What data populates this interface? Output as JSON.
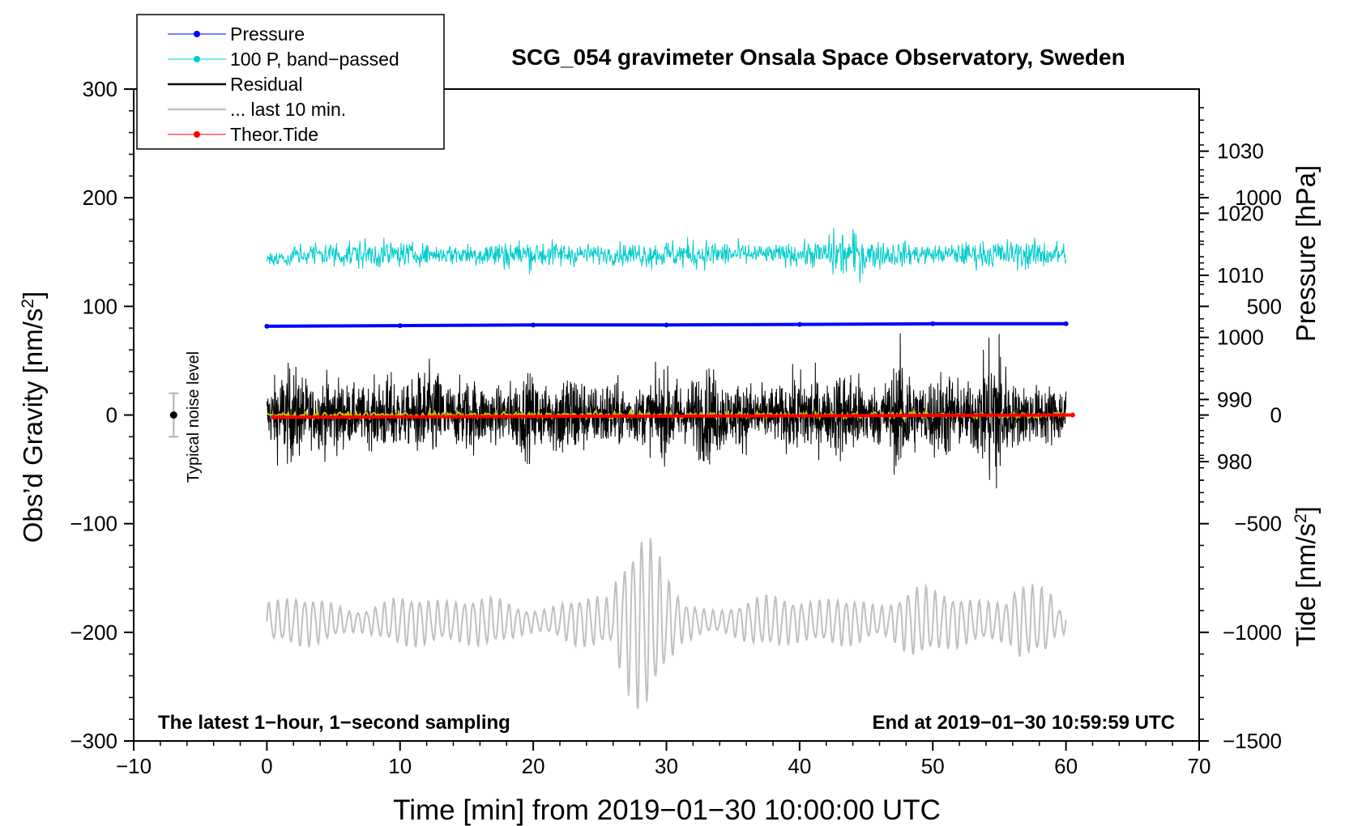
{
  "chart_data": {
    "type": "line",
    "title": "SCG_054 gravimeter Onsala Space Observatory, Sweden",
    "xlabel": "Time [min] from 2019−01−30 10:00:00 UTC",
    "ylabel_main": "Obs’d Gravity [nm/s",
    "ylabel_main_sup": "2",
    "ylabel_main_end": "]",
    "ylabel_pressure": "Pressure [hPa]",
    "ylabel_tide": "Tide [nm/s",
    "ylabel_tide_sup": "2",
    "ylabel_tide_end": "]",
    "xlim": [
      -10,
      70
    ],
    "ylim_main": [
      -300,
      300
    ],
    "ylim_pressure": [
      935,
      1040
    ],
    "ylim_tide": [
      -1500,
      1500
    ],
    "x_ticks": [
      {
        "v": -10,
        "label": "−10"
      },
      {
        "v": 0,
        "label": "0"
      },
      {
        "v": 10,
        "label": "10"
      },
      {
        "v": 20,
        "label": "20"
      },
      {
        "v": 30,
        "label": "30"
      },
      {
        "v": 40,
        "label": "40"
      },
      {
        "v": 50,
        "label": "50"
      },
      {
        "v": 60,
        "label": "60"
      },
      {
        "v": 70,
        "label": "70"
      }
    ],
    "y_ticks_main": [
      {
        "v": 300,
        "label": "300"
      },
      {
        "v": 200,
        "label": "200"
      },
      {
        "v": 100,
        "label": "100"
      },
      {
        "v": 0,
        "label": "0"
      },
      {
        "v": -100,
        "label": "−100"
      },
      {
        "v": -200,
        "label": "−200"
      },
      {
        "v": -300,
        "label": "−300"
      }
    ],
    "y_ticks_pressure": [
      {
        "v": 1030,
        "label": "1030"
      },
      {
        "v": 1020,
        "label": "1020"
      },
      {
        "v": 1010,
        "label": "1010"
      },
      {
        "v": 1000,
        "label": "1000"
      },
      {
        "v": 990,
        "label": "990"
      },
      {
        "v": 980,
        "label": "980"
      }
    ],
    "y_ticks_tide": [
      {
        "v": 1000,
        "label": "1000"
      },
      {
        "v": 500,
        "label": "500"
      },
      {
        "v": 0,
        "label": "0"
      },
      {
        "v": -500,
        "label": "−500"
      },
      {
        "v": -1000,
        "label": "−1000"
      },
      {
        "v": -1500,
        "label": "−1500"
      }
    ],
    "legend_position": "top-left",
    "legend": [
      {
        "label": "Pressure",
        "color": "#0000ff",
        "style": "line-dot"
      },
      {
        "label": "100 P, band−passed",
        "color": "#00cccc",
        "style": "line-dot"
      },
      {
        "label": "Residual",
        "color": "#000000",
        "style": "line"
      },
      {
        "label": "... last 10 min.",
        "color": "#c0c0c0",
        "style": "line"
      },
      {
        "label": "Theor.Tide",
        "color": "#ff0000",
        "style": "line-dot"
      }
    ],
    "series": [
      {
        "name": "Pressure",
        "axis": "pressure",
        "color": "#0000ff",
        "x": [
          0,
          10,
          20,
          30,
          40,
          50,
          60
        ],
        "values": [
          1001.8,
          1001.9,
          1002.0,
          1002.0,
          1002.1,
          1002.2,
          1002.2
        ]
      },
      {
        "name": "100 P, band−passed",
        "axis": "main",
        "color": "#00cccc",
        "x_range": [
          0,
          60
        ],
        "center": 148,
        "amplitude": 12
      },
      {
        "name": "Residual",
        "axis": "main",
        "color": "#000000",
        "x_range": [
          0,
          60
        ],
        "center": 0,
        "amplitude": 38,
        "max": 93,
        "min": -90
      },
      {
        "name": "Residual smoothed",
        "axis": "main",
        "color": "#c8c800",
        "x_range": [
          0,
          60
        ],
        "center": 0,
        "amplitude": 2
      },
      {
        "name": "... last 10 min.",
        "axis": "main",
        "color": "#c0c0c0",
        "x_range": [
          0,
          60
        ],
        "center": -190,
        "amplitude": 35,
        "max": -92,
        "min": -275
      },
      {
        "name": "Theor.Tide",
        "axis": "tide",
        "color": "#ff0000",
        "x": [
          0.5,
          60.5
        ],
        "values": [
          -10,
          0
        ]
      }
    ],
    "noise_marker": {
      "x": -7,
      "value": 0,
      "error": 20,
      "label": "Typical noise level"
    },
    "annotations": {
      "bottom_left": "The latest 1−hour, 1−second sampling",
      "bottom_right": "End at 2019−01−30 10:59:59 UTC"
    }
  }
}
